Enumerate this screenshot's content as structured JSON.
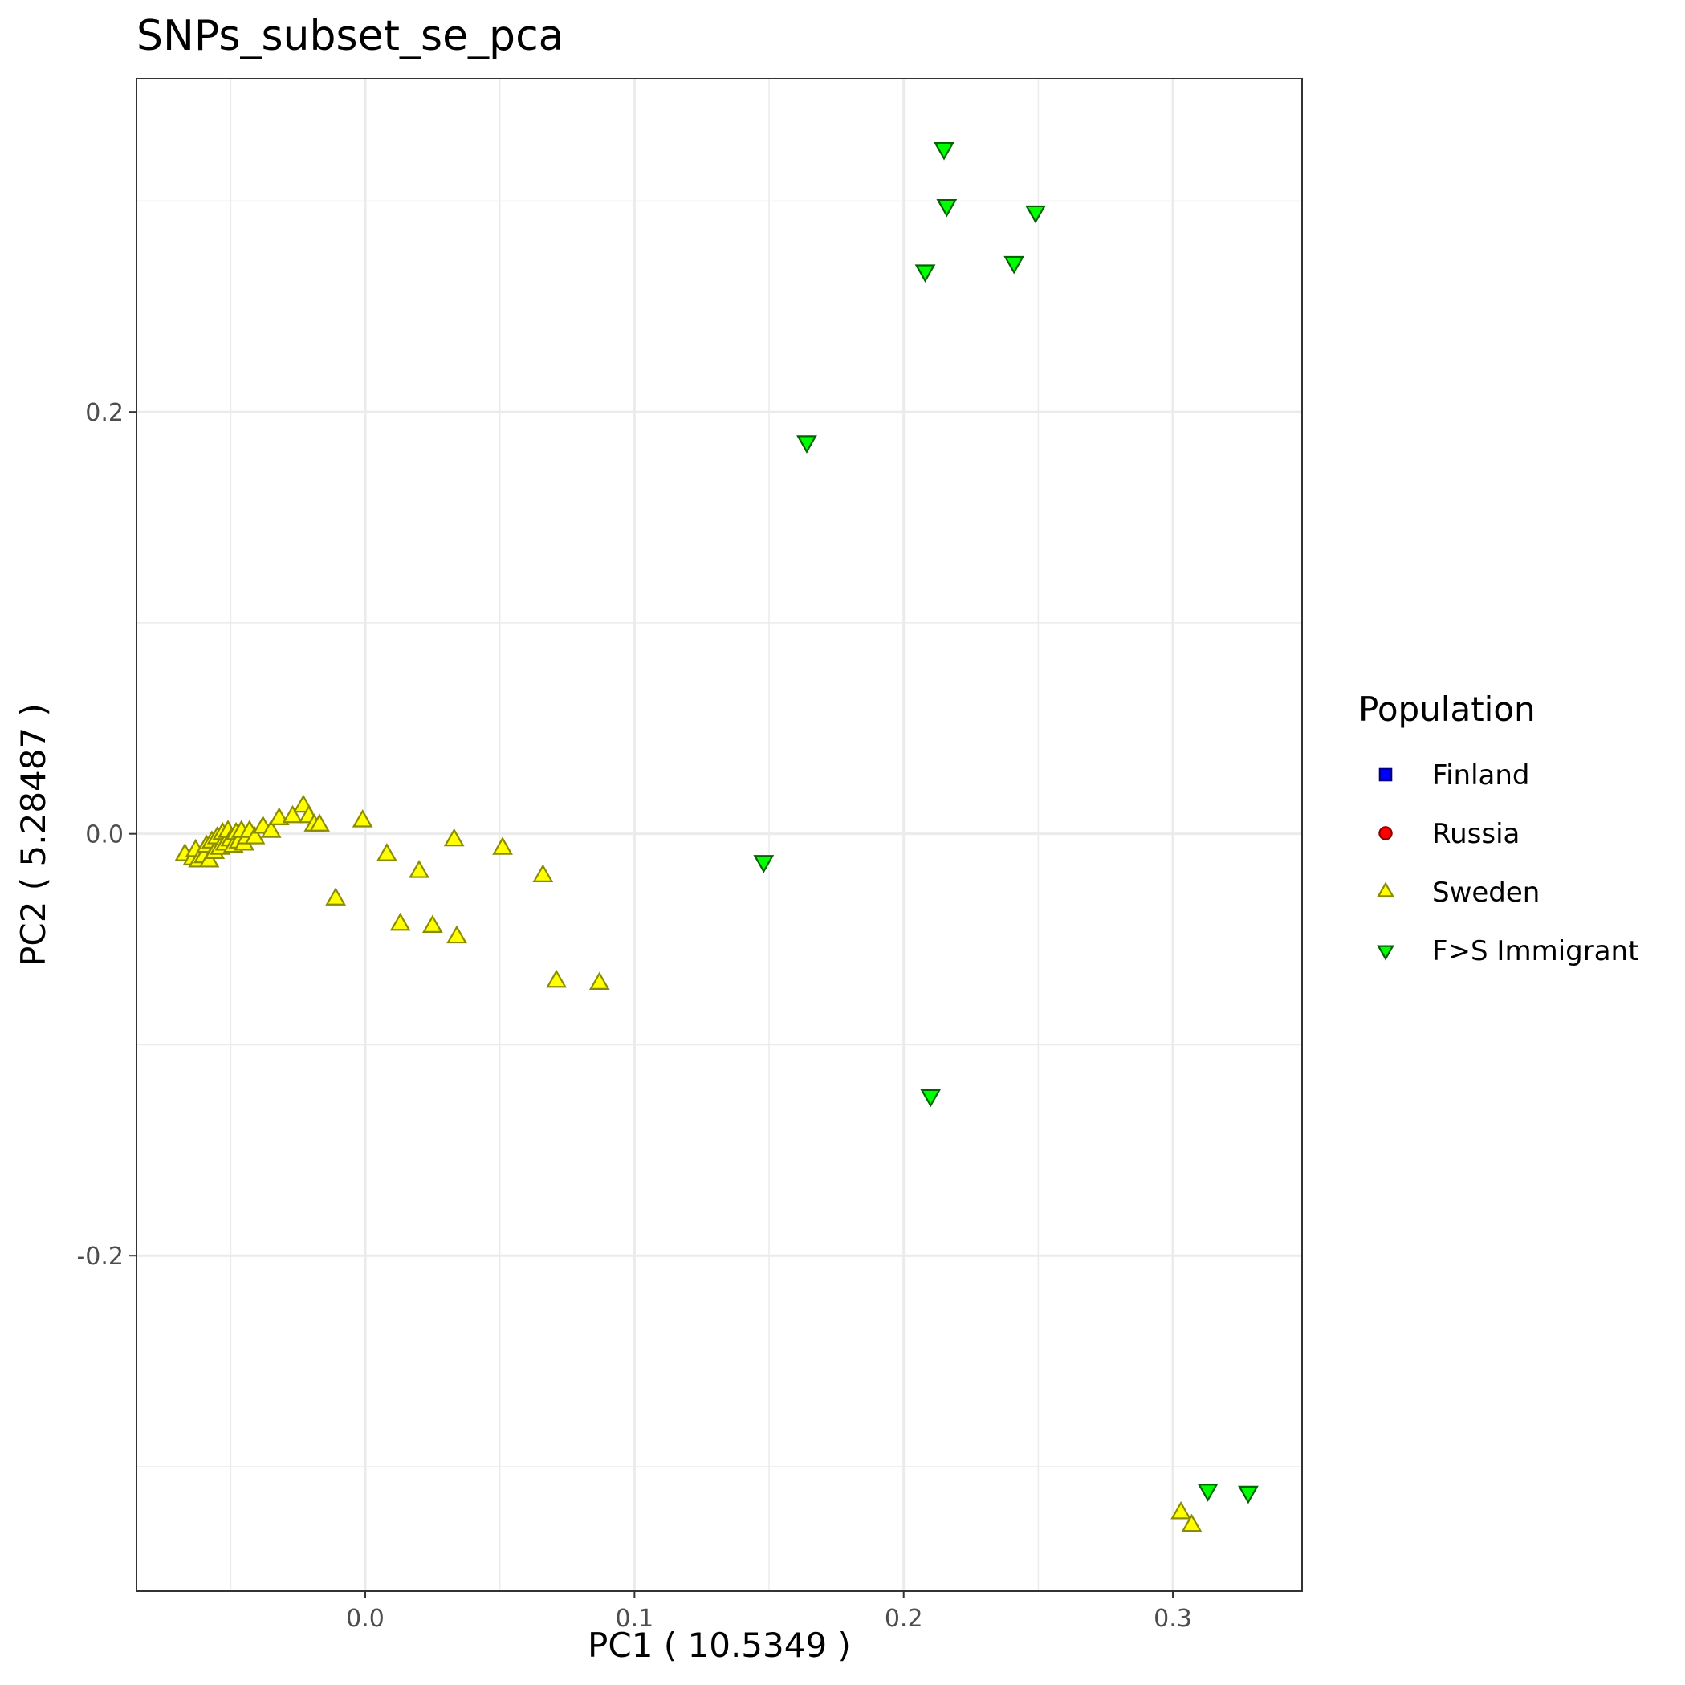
{
  "chart_data": {
    "type": "scatter",
    "title": "SNPs_subset_se_pca",
    "xlabel": "PC1 ( 10.5349 )",
    "ylabel": "PC2 ( 5.28487 )",
    "xlim": [
      -0.085,
      0.348
    ],
    "ylim": [
      -0.359,
      0.358
    ],
    "x_ticks": [
      0.0,
      0.1,
      0.2,
      0.3
    ],
    "x_tick_labels": [
      "0.0",
      "0.1",
      "0.2",
      "0.3"
    ],
    "y_ticks": [
      -0.2,
      0.0,
      0.2
    ],
    "y_tick_labels": [
      "-0.2",
      "0.0",
      "0.2"
    ],
    "grid": true,
    "legend": {
      "title": "Population",
      "position": "right"
    },
    "series": [
      {
        "name": "Finland",
        "shape": "square",
        "fill": "#0000ff",
        "stroke": "#00008b",
        "points": []
      },
      {
        "name": "Russia",
        "shape": "circle",
        "fill": "#ff0000",
        "stroke": "#8b0000",
        "points": []
      },
      {
        "name": "Sweden",
        "shape": "triangle-up",
        "fill": "#ffff00",
        "stroke": "#8b8b00",
        "points": [
          [
            -0.067,
            -0.01
          ],
          [
            -0.064,
            -0.012
          ],
          [
            -0.063,
            -0.008
          ],
          [
            -0.062,
            -0.013
          ],
          [
            -0.06,
            -0.011
          ],
          [
            -0.059,
            -0.006
          ],
          [
            -0.058,
            -0.013
          ],
          [
            -0.057,
            -0.004
          ],
          [
            -0.056,
            -0.009
          ],
          [
            -0.055,
            -0.002
          ],
          [
            -0.054,
            -0.007
          ],
          [
            -0.053,
            0.0
          ],
          [
            -0.052,
            -0.005
          ],
          [
            -0.051,
            0.001
          ],
          [
            -0.05,
            -0.003
          ],
          [
            -0.049,
            -0.006
          ],
          [
            -0.048,
            0.0
          ],
          [
            -0.047,
            -0.004
          ],
          [
            -0.046,
            0.001
          ],
          [
            -0.045,
            -0.005
          ],
          [
            -0.044,
            -0.002
          ],
          [
            -0.043,
            0.001
          ],
          [
            -0.041,
            -0.002
          ],
          [
            -0.038,
            0.003
          ],
          [
            -0.035,
            0.001
          ],
          [
            -0.032,
            0.007
          ],
          [
            -0.027,
            0.008
          ],
          [
            -0.023,
            0.013
          ],
          [
            -0.021,
            0.008
          ],
          [
            -0.019,
            0.004
          ],
          [
            -0.017,
            0.004
          ],
          [
            -0.001,
            0.006
          ],
          [
            -0.011,
            -0.031
          ],
          [
            0.008,
            -0.01
          ],
          [
            0.013,
            -0.043
          ],
          [
            0.02,
            -0.018
          ],
          [
            0.025,
            -0.044
          ],
          [
            0.033,
            -0.003
          ],
          [
            0.034,
            -0.049
          ],
          [
            0.051,
            -0.007
          ],
          [
            0.066,
            -0.02
          ],
          [
            0.071,
            -0.07
          ],
          [
            0.087,
            -0.071
          ],
          [
            0.303,
            -0.322
          ],
          [
            0.307,
            -0.328
          ]
        ]
      },
      {
        "name": "F>S Immigrant",
        "shape": "triangle-down",
        "fill": "#00ff00",
        "stroke": "#006400",
        "points": [
          [
            0.215,
            0.325
          ],
          [
            0.216,
            0.298
          ],
          [
            0.249,
            0.295
          ],
          [
            0.241,
            0.271
          ],
          [
            0.208,
            0.267
          ],
          [
            0.164,
            0.186
          ],
          [
            0.148,
            -0.013
          ],
          [
            0.21,
            -0.124
          ],
          [
            0.313,
            -0.311
          ],
          [
            0.328,
            -0.312
          ]
        ]
      }
    ]
  }
}
